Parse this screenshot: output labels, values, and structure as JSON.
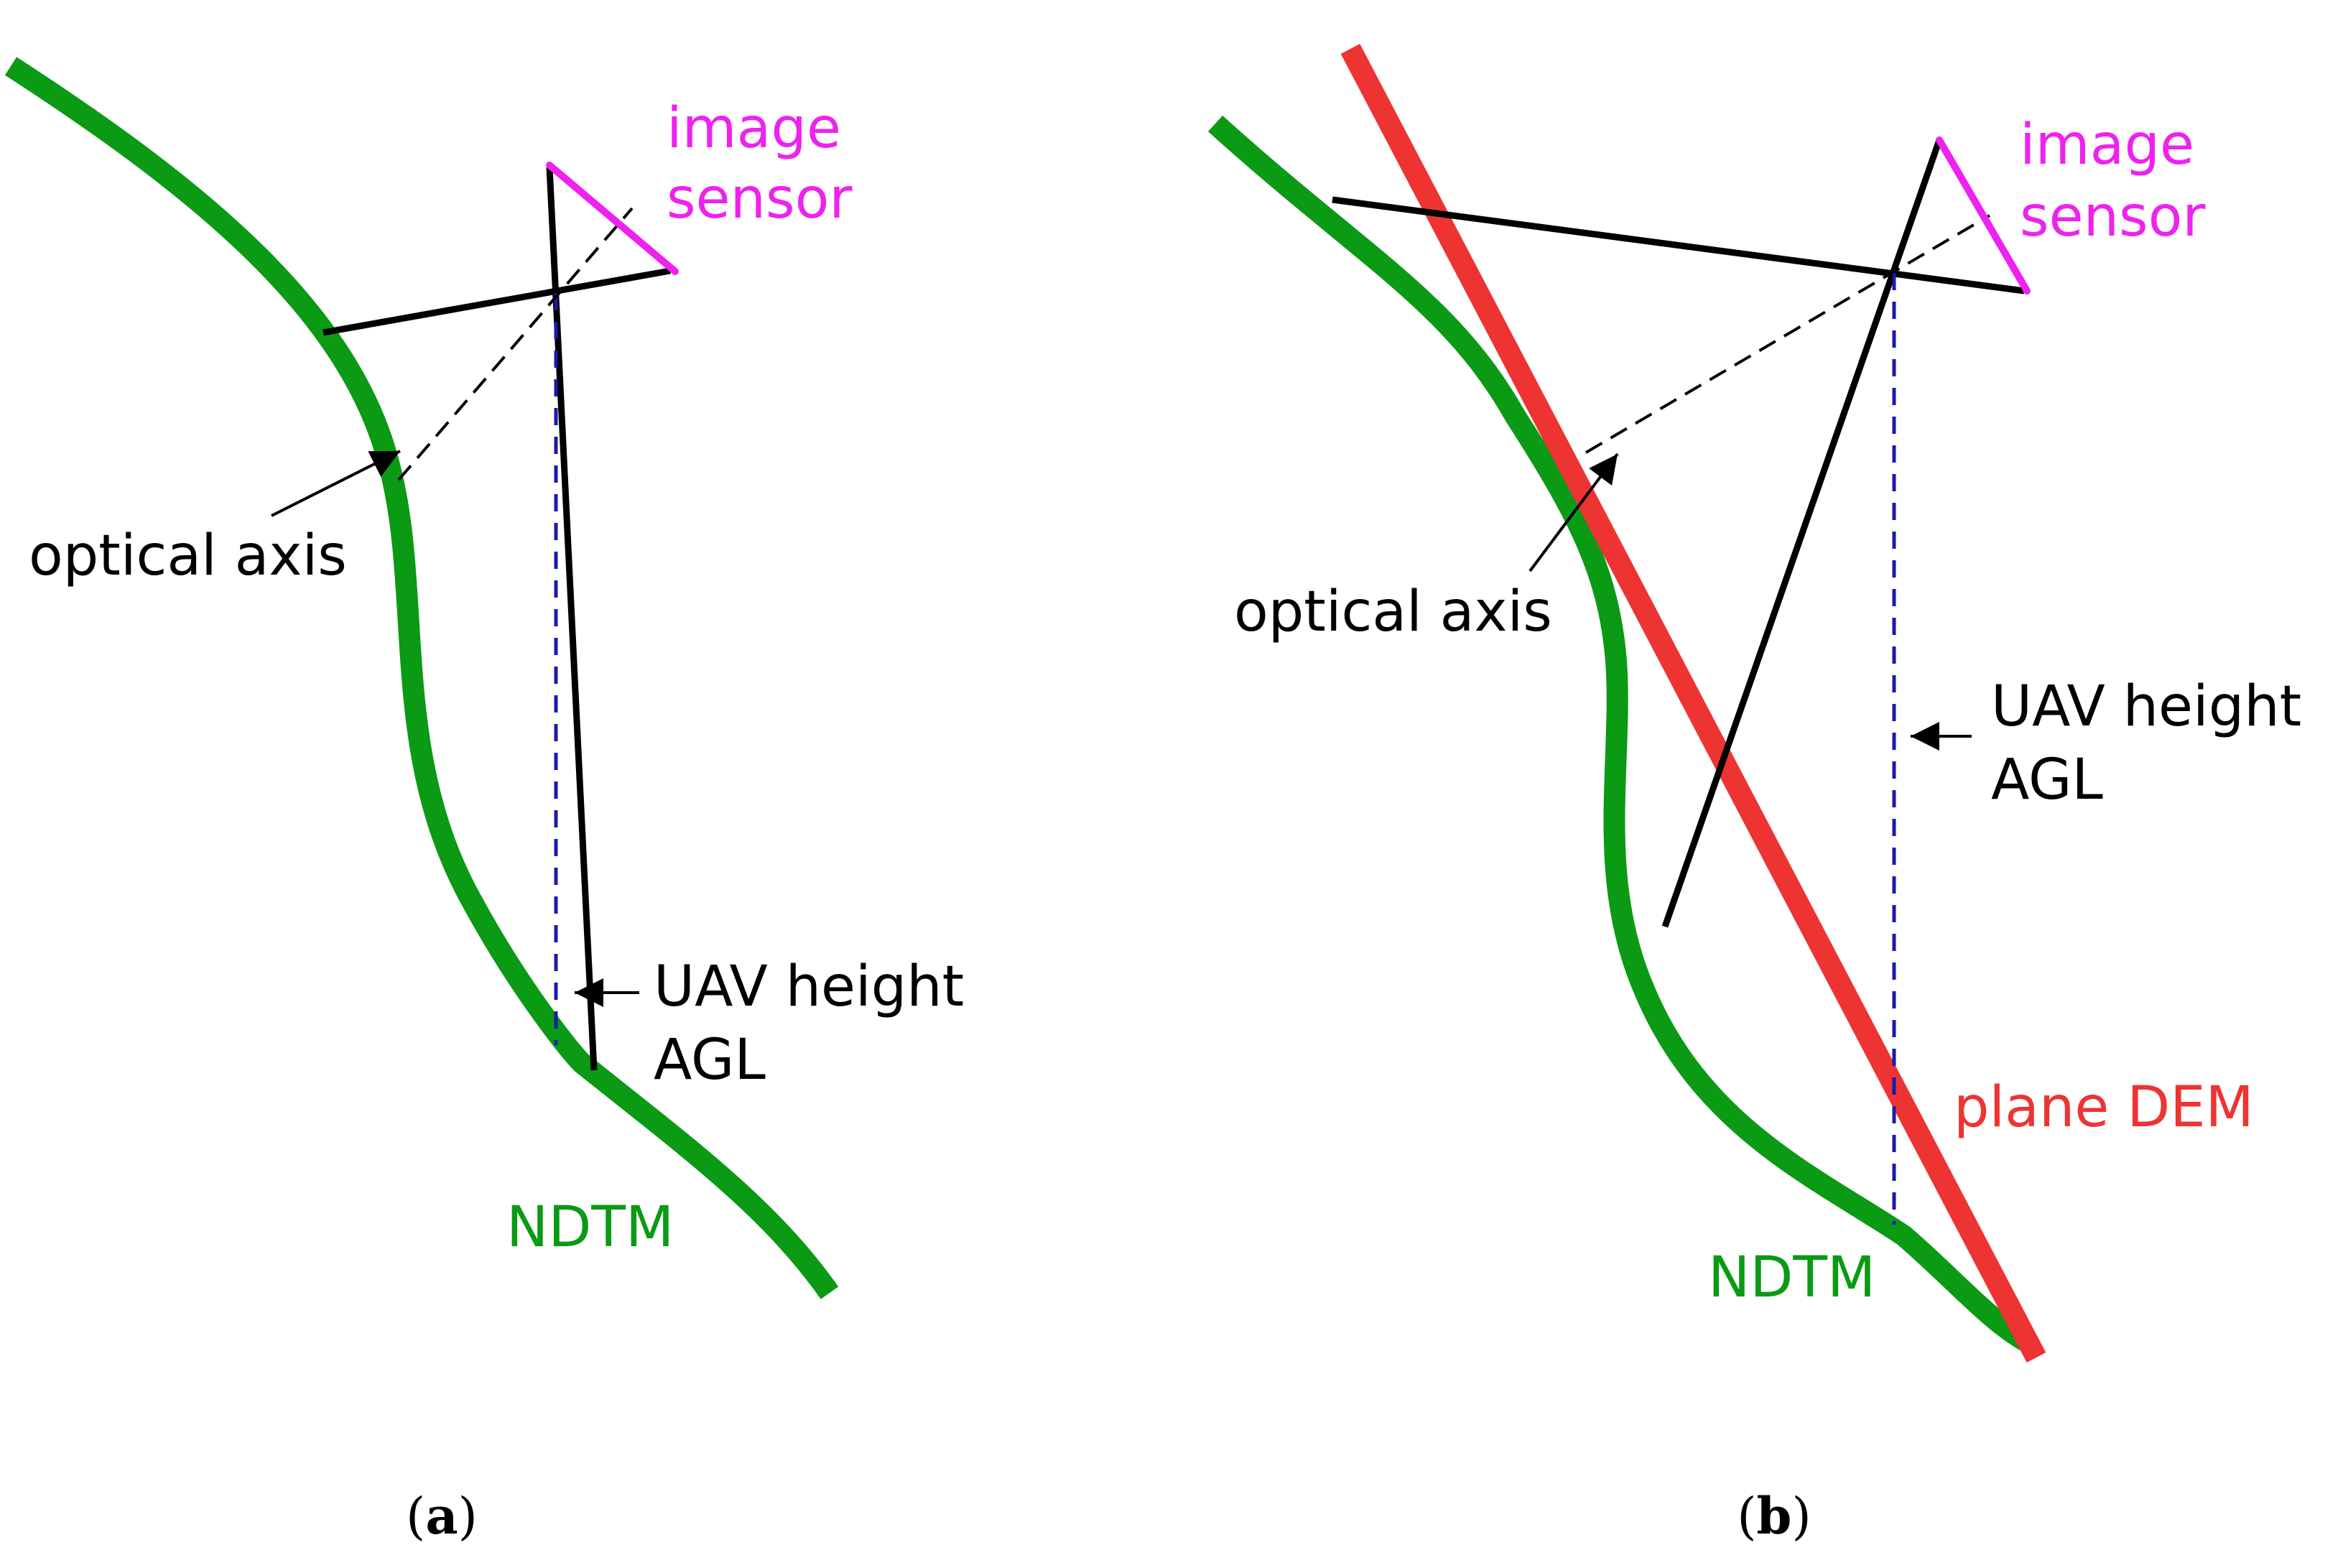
{
  "colors": {
    "terrain": "#0a9a14",
    "sensor": "#ee22ee",
    "plane_dem": "#ee3333",
    "ray": "#000000",
    "height_line": "#1a1aa8"
  },
  "panel_a": {
    "sensor_label_line1": "image",
    "sensor_label_line2": "sensor",
    "optical_axis_label": "optical axis",
    "height_label_line1": "UAV height",
    "height_label_line2": "AGL",
    "terrain_label": "NDTM",
    "caption_open": "(",
    "caption_letter": "a",
    "caption_close": ")"
  },
  "panel_b": {
    "sensor_label_line1": "image",
    "sensor_label_line2": "sensor",
    "optical_axis_label": "optical axis",
    "height_label_line1": "UAV height",
    "height_label_line2": "AGL",
    "plane_label": "plane DEM",
    "terrain_label": "NDTM",
    "caption_open": "(",
    "caption_letter": "b",
    "caption_close": ")"
  }
}
